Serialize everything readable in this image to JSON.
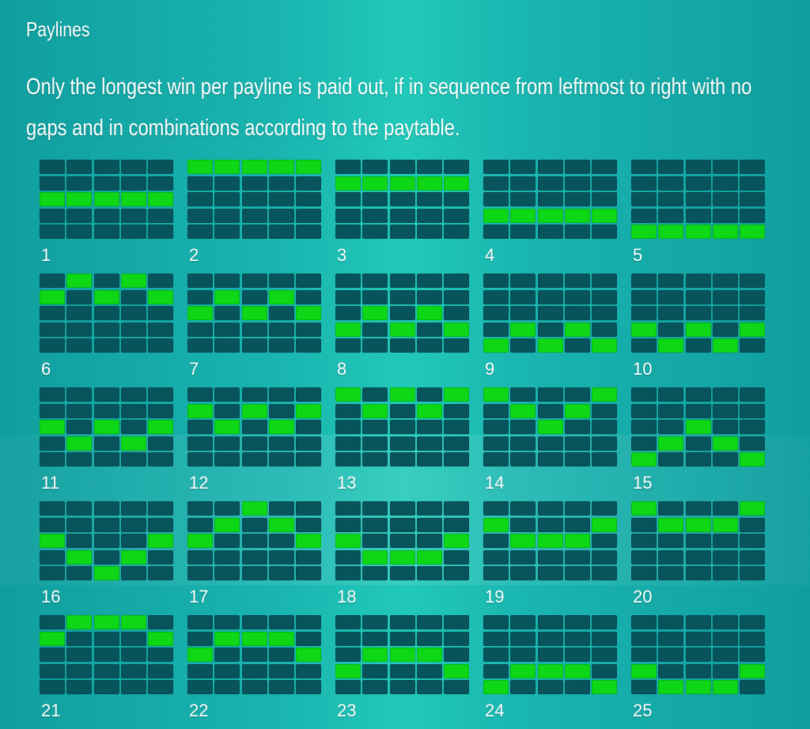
{
  "header": {
    "title": "Paylines",
    "description": "Only the longest win per payline is paid out, if in sequence from leftmost to right with no gaps and in combinations according to the paytable."
  },
  "colors": {
    "background": "#1ab5b0",
    "cell_off": "#07545c",
    "cell_on": "#0ed815",
    "text": "#ffffff"
  },
  "grid": {
    "reels": 5,
    "rows": 5
  },
  "paylines": [
    {
      "number": "1",
      "rows": [
        2,
        2,
        2,
        2,
        2
      ]
    },
    {
      "number": "2",
      "rows": [
        0,
        0,
        0,
        0,
        0
      ]
    },
    {
      "number": "3",
      "rows": [
        1,
        1,
        1,
        1,
        1
      ]
    },
    {
      "number": "4",
      "rows": [
        3,
        3,
        3,
        3,
        3
      ]
    },
    {
      "number": "5",
      "rows": [
        4,
        4,
        4,
        4,
        4
      ]
    },
    {
      "number": "6",
      "rows": [
        1,
        0,
        1,
        0,
        1
      ]
    },
    {
      "number": "7",
      "rows": [
        2,
        1,
        2,
        1,
        2
      ]
    },
    {
      "number": "8",
      "rows": [
        3,
        2,
        3,
        2,
        3
      ]
    },
    {
      "number": "9",
      "rows": [
        4,
        3,
        4,
        3,
        4
      ]
    },
    {
      "number": "10",
      "rows": [
        3,
        4,
        3,
        4,
        3
      ]
    },
    {
      "number": "11",
      "rows": [
        2,
        3,
        2,
        3,
        2
      ]
    },
    {
      "number": "12",
      "rows": [
        1,
        2,
        1,
        2,
        1
      ]
    },
    {
      "number": "13",
      "rows": [
        0,
        1,
        0,
        1,
        0
      ]
    },
    {
      "number": "14",
      "rows": [
        0,
        1,
        2,
        1,
        0
      ]
    },
    {
      "number": "15",
      "rows": [
        4,
        3,
        2,
        3,
        4
      ]
    },
    {
      "number": "16",
      "rows": [
        2,
        3,
        4,
        3,
        2
      ]
    },
    {
      "number": "17",
      "rows": [
        2,
        1,
        0,
        1,
        2
      ]
    },
    {
      "number": "18",
      "rows": [
        2,
        3,
        3,
        3,
        2
      ]
    },
    {
      "number": "19",
      "rows": [
        1,
        2,
        2,
        2,
        1
      ]
    },
    {
      "number": "20",
      "rows": [
        0,
        1,
        1,
        1,
        0
      ]
    },
    {
      "number": "21",
      "rows": [
        1,
        0,
        0,
        0,
        1
      ]
    },
    {
      "number": "22",
      "rows": [
        2,
        1,
        1,
        1,
        2
      ]
    },
    {
      "number": "23",
      "rows": [
        3,
        2,
        2,
        2,
        3
      ]
    },
    {
      "number": "24",
      "rows": [
        4,
        3,
        3,
        3,
        4
      ]
    },
    {
      "number": "25",
      "rows": [
        3,
        4,
        4,
        4,
        3
      ]
    }
  ]
}
